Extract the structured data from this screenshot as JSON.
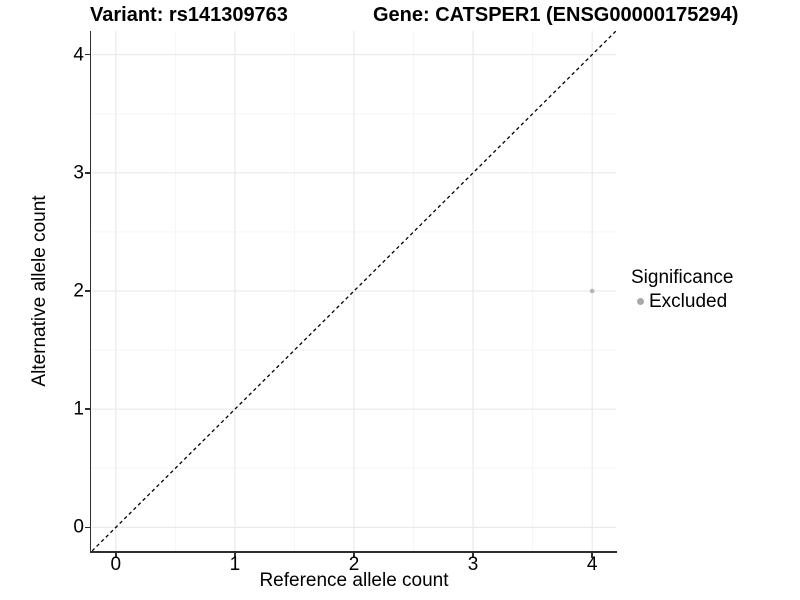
{
  "header": {
    "variant_title": "Variant: rs141309763",
    "gene_title": "Gene: CATSPER1 (ENSG00000175294)"
  },
  "chart_data": {
    "type": "scatter",
    "title": "Variant: rs141309763 / Gene: CATSPER1 (ENSG00000175294)",
    "xlabel": "Reference allele count",
    "ylabel": "Alternative allele count",
    "xlim": [
      -0.2,
      4.2
    ],
    "ylim": [
      -0.2,
      4.2
    ],
    "xticks": [
      0,
      1,
      2,
      3,
      4
    ],
    "yticks": [
      0,
      1,
      2,
      3,
      4
    ],
    "minor_gridlines_x": [
      0.5,
      1.5,
      2.5,
      3.5
    ],
    "minor_gridlines_y": [
      0.5,
      1.5,
      2.5,
      3.5
    ],
    "grid": "on",
    "identity_line": {
      "style": "dashed",
      "x1": -0.2,
      "y1": -0.2,
      "x2": 4.2,
      "y2": 4.2,
      "color": "#000000"
    },
    "series": [
      {
        "name": "Excluded",
        "color": "#b5b5b5",
        "point_radius": 2.3,
        "points": [
          {
            "x": 4,
            "y": 2
          }
        ]
      }
    ],
    "legend": {
      "title": "Significance",
      "position": "right",
      "entries": [
        {
          "label": "Excluded",
          "color": "#a8a8a8",
          "marker": "circle"
        }
      ]
    }
  },
  "colors": {
    "background": "#ffffff",
    "grid_major": "#eaeaea",
    "grid_minor": "#f5f5f5",
    "axis_line": "#2e2e2e",
    "text": "#000000"
  }
}
